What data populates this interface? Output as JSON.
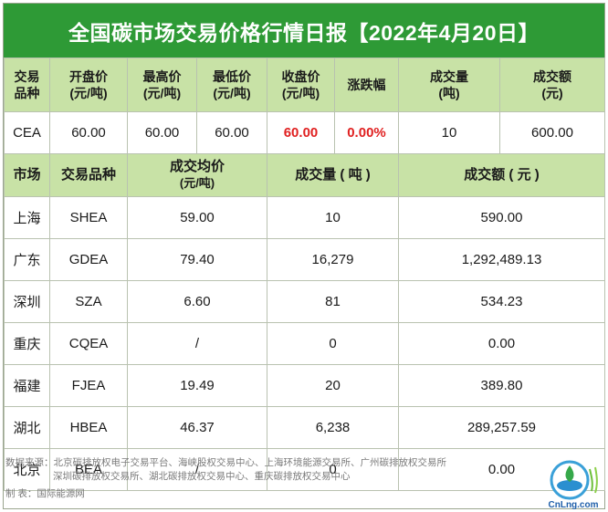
{
  "title": "全国碳市场交易价格行情日报【2022年4月20日】",
  "national": {
    "headers": [
      {
        "line1": "交易",
        "line2": "品种"
      },
      {
        "line1": "开盘价",
        "line2": "(元/吨)"
      },
      {
        "line1": "最高价",
        "line2": "(元/吨)"
      },
      {
        "line1": "最低价",
        "line2": "(元/吨)"
      },
      {
        "line1": "收盘价",
        "line2": "(元/吨)"
      },
      {
        "line1": "涨跌幅",
        "line2": ""
      },
      {
        "line1": "成交量",
        "line2": "(吨)"
      },
      {
        "line1": "成交额",
        "line2": "(元)"
      }
    ],
    "row": [
      "CEA",
      "60.00",
      "60.00",
      "60.00",
      "60.00",
      "0.00%",
      "10",
      "600.00"
    ]
  },
  "regional": {
    "headers": {
      "market": "市场",
      "variety": "交易品种",
      "avg_price_line1": "成交均价",
      "avg_price_line2": "(元/吨)",
      "volume": "成交量 ( 吨 )",
      "amount": "成交额 ( 元 )"
    },
    "rows": [
      {
        "market": "上海",
        "variety": "SHEA",
        "avg_price": "59.00",
        "volume": "10",
        "amount": "590.00"
      },
      {
        "market": "广东",
        "variety": "GDEA",
        "avg_price": "79.40",
        "volume": "16,279",
        "amount": "1,292,489.13"
      },
      {
        "market": "深圳",
        "variety": "SZA",
        "avg_price": "6.60",
        "volume": "81",
        "amount": "534.23"
      },
      {
        "market": "重庆",
        "variety": "CQEA",
        "avg_price": "/",
        "volume": "0",
        "amount": "0.00"
      },
      {
        "market": "福建",
        "variety": "FJEA",
        "avg_price": "19.49",
        "volume": "20",
        "amount": "389.80"
      },
      {
        "market": "湖北",
        "variety": "HBEA",
        "avg_price": "46.37",
        "volume": "6,238",
        "amount": "289,257.59"
      },
      {
        "market": "北京",
        "variety": "BEA",
        "avg_price": "/",
        "volume": "0",
        "amount": "0.00"
      }
    ]
  },
  "footer": {
    "source_line1": "数据来源：北京碳排放权电子交易平台、海峡股权交易中心、上海环境能源交易所、广州碳排放权交易所",
    "source_line2": "深圳碳排放权交易所、湖北碳排放权交易中心、重庆碳排放权交易中心",
    "maker": "制    表：国际能源网"
  },
  "logo": {
    "text": "CnLng.com",
    "icon": "cnlng-logo-icon"
  },
  "colors": {
    "header_green": "#2e9a36",
    "subheader_green": "#c8e2a6",
    "highlight_red": "#e02020"
  }
}
